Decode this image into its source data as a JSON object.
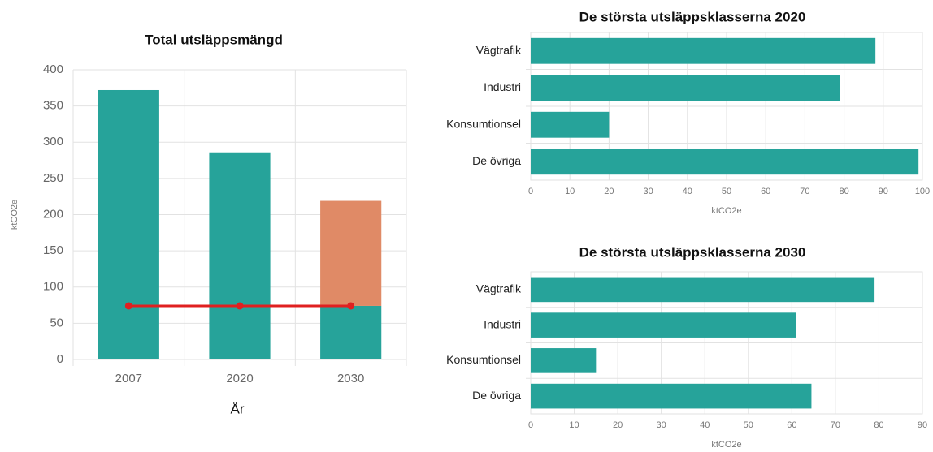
{
  "chart_data": [
    {
      "type": "bar",
      "title": "Total utsläppsmängd",
      "ylabel": "ktCO2e",
      "xlabel": "År",
      "categories": [
        "2007",
        "2020",
        "2030"
      ],
      "stacked": true,
      "series": [
        {
          "color": "#26a39a",
          "values": [
            372,
            286,
            74
          ]
        },
        {
          "color": "#e08a66",
          "values": [
            null,
            null,
            145
          ]
        },
        {
          "type": "line",
          "color": "#e02020",
          "values": [
            74,
            74,
            74
          ]
        }
      ],
      "ylim": [
        0,
        400
      ],
      "yticks": [
        0,
        50,
        100,
        150,
        200,
        250,
        300,
        350,
        400
      ],
      "grid": true
    },
    {
      "type": "bar",
      "orientation": "horizontal",
      "title": "De största utsläppsklasserna 2020",
      "xlabel": "ktCO2e",
      "categories": [
        "Vägtrafik",
        "Industri",
        "Konsumtionsel",
        "De övriga"
      ],
      "values": [
        88,
        79,
        20,
        99
      ],
      "color": "#26a39a",
      "xlim": [
        0,
        100
      ],
      "xticks": [
        0,
        10,
        20,
        30,
        40,
        50,
        60,
        70,
        80,
        90,
        100
      ],
      "grid": true
    },
    {
      "type": "bar",
      "orientation": "horizontal",
      "title": "De största utsläppsklasserna 2030",
      "xlabel": "ktCO2e",
      "categories": [
        "Vägtrafik",
        "Industri",
        "Konsumtionsel",
        "De övriga"
      ],
      "values": [
        79,
        61,
        15,
        64.5
      ],
      "color": "#26a39a",
      "xlim": [
        0,
        90
      ],
      "xticks": [
        0,
        10,
        20,
        30,
        40,
        50,
        60,
        70,
        80,
        90
      ],
      "grid": true
    }
  ]
}
